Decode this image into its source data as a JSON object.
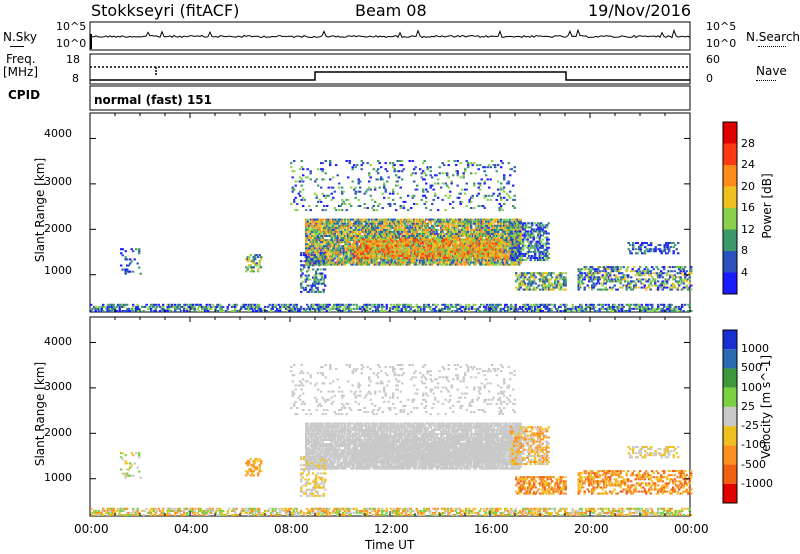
{
  "header": {
    "station": "Stokkseyri (fitACF)",
    "beam": "Beam 08",
    "date": "19/Nov/2016"
  },
  "noise_panel": {
    "left_label": "N.Sky",
    "left_top_tick": "10^5",
    "left_bottom_tick": "10^0",
    "right_top_tick": "10^5",
    "right_bottom_tick": "10^0",
    "right_label": "N.Search"
  },
  "freq_panel": {
    "left_label_1": "Freq.",
    "left_label_2": "[MHz]",
    "left_top_tick": "18",
    "left_bottom_tick": "8",
    "right_top_tick": "60",
    "right_bottom_tick": "0",
    "right_label": "Nave"
  },
  "cpid_panel": {
    "label": "CPID",
    "mode": "normal (fast) 151"
  },
  "chart_data": [
    {
      "type": "heatmap",
      "name_on_plot": "Power",
      "ylabel": "Slant Range [km]",
      "yticks": [
        "1000",
        "2000",
        "3000",
        "4000"
      ],
      "ylim": [
        180,
        4560
      ],
      "colorbar_label": "Power [dB]",
      "colorbar_ticks": [
        "4",
        "8",
        "12",
        "16",
        "20",
        "24",
        "28"
      ],
      "colorbar_colors": [
        "#1a1aff",
        "#2a52be",
        "#3c9a6a",
        "#8bd04a",
        "#f0c020",
        "#ff8c1a",
        "#ff3a10",
        "#e00000"
      ],
      "xlim": [
        "00:00",
        "24:00"
      ]
    },
    {
      "type": "heatmap",
      "name_on_plot": "Velocity",
      "ylabel": "Slant Range [km]",
      "yticks": [
        "1000",
        "2000",
        "3000",
        "4000"
      ],
      "ylim": [
        180,
        4560
      ],
      "colorbar_label": "Velocity [m s^-1]",
      "colorbar_ticks": [
        "1000",
        "500",
        "100",
        "25",
        "-25",
        "-100",
        "-500",
        "-1000"
      ],
      "colorbar_colors": [
        "#1a2fd0",
        "#2a6ab0",
        "#3c9a3c",
        "#7ad040",
        "#c8c8c8",
        "#f0c020",
        "#ff9020",
        "#f06010",
        "#e00000"
      ],
      "xlim": [
        "00:00",
        "24:00"
      ]
    }
  ],
  "xaxis": {
    "ticks": [
      "00:00",
      "04:00",
      "08:00",
      "12:00",
      "16:00",
      "20:00",
      "00:00"
    ],
    "label": "Time UT"
  }
}
